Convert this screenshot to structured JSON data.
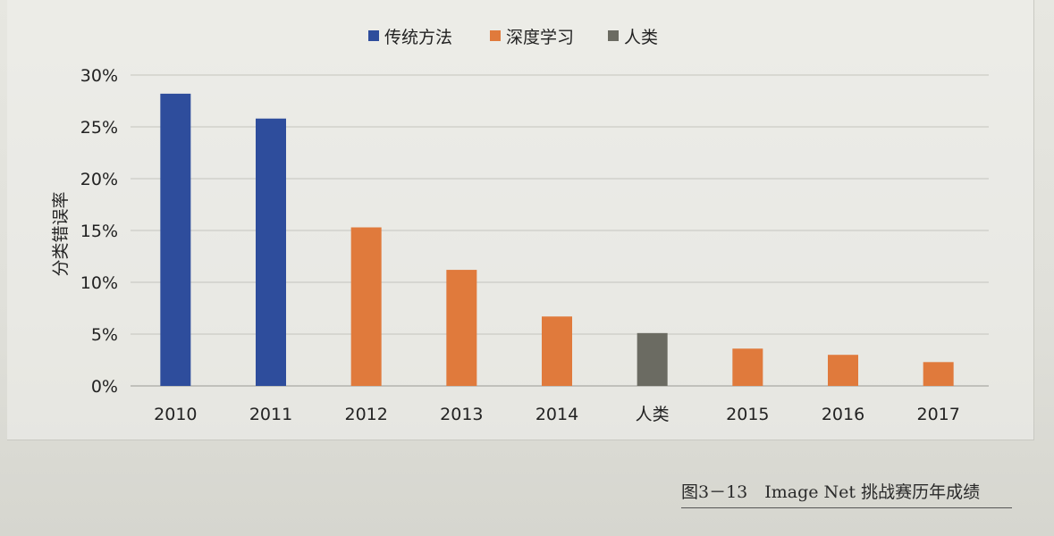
{
  "chart_data": {
    "type": "bar",
    "categories": [
      "2010",
      "2011",
      "2012",
      "2013",
      "2014",
      "人类",
      "2015",
      "2016",
      "2017"
    ],
    "values": [
      28.2,
      25.8,
      15.3,
      11.2,
      6.7,
      5.1,
      3.6,
      3.0,
      2.3
    ],
    "category_series": [
      "传统方法",
      "传统方法",
      "深度学习",
      "深度学习",
      "深度学习",
      "人类",
      "深度学习",
      "深度学习",
      "深度学习"
    ],
    "series": [
      {
        "name": "传统方法",
        "color": "#2e4d9c"
      },
      {
        "name": "深度学习",
        "color": "#e07a3c"
      },
      {
        "name": "人类",
        "color": "#6b6b62"
      }
    ],
    "yticks": [
      "0%",
      "5%",
      "10%",
      "15%",
      "20%",
      "25%",
      "30%"
    ],
    "ytick_values": [
      0,
      5,
      10,
      15,
      20,
      25,
      30
    ],
    "ylim": [
      0,
      30
    ],
    "ylabel": "分类错误率",
    "xlabel": "",
    "grid": true,
    "legend_position": "top"
  },
  "caption": "图3－13　Image Net 挑战赛历年成绩"
}
